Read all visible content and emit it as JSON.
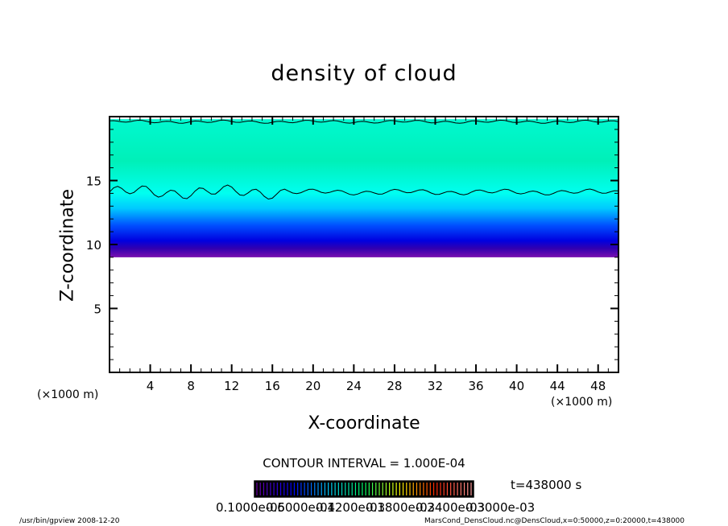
{
  "chart_data": {
    "type": "contour",
    "title": "density of cloud",
    "xlabel": "X-coordinate",
    "ylabel": "Z-coordinate",
    "x_unit": "(×1000 m)",
    "y_unit": "(×1000 m)",
    "xlim": [
      0,
      50
    ],
    "ylim": [
      0,
      20
    ],
    "xticks": [
      4,
      8,
      12,
      16,
      20,
      24,
      28,
      32,
      36,
      40,
      44,
      48
    ],
    "yticks": [
      5,
      10,
      15
    ],
    "contour_interval": "CONTOUR INTERVAL = 1.000E-04",
    "contour_lines_z": [
      14.1,
      19.6
    ],
    "cloud_base_z": 9.0,
    "colorbar": {
      "labels": [
        "0.1000e-05",
        "0.6000e-04",
        "0.1200e-03",
        "0.1800e-03",
        "0.2400e-03",
        "0.3000e-03"
      ],
      "colors": [
        "#6a00a8",
        "#0000ff",
        "#00ccff",
        "#00ff66",
        "#ffff00",
        "#ff2200",
        "#ff9999"
      ]
    },
    "fill_profile": [
      {
        "z": 9.0,
        "color": "#7a10b0"
      },
      {
        "z": 9.7,
        "color": "#3000b0"
      },
      {
        "z": 10.3,
        "color": "#0000e0"
      },
      {
        "z": 11.5,
        "color": "#0050ff"
      },
      {
        "z": 12.8,
        "color": "#00c8ff"
      },
      {
        "z": 14.0,
        "color": "#00fff0"
      },
      {
        "z": 16.5,
        "color": "#00f0b8"
      },
      {
        "z": 19.8,
        "color": "#00f8d0"
      }
    ]
  },
  "time_label": "t=438000 s",
  "footer": {
    "left": "/usr/bin/gpview   2008-12-20",
    "right": "MarsCond_DensCloud.nc@DensCloud,x=0:50000,z=0:20000,t=438000"
  }
}
